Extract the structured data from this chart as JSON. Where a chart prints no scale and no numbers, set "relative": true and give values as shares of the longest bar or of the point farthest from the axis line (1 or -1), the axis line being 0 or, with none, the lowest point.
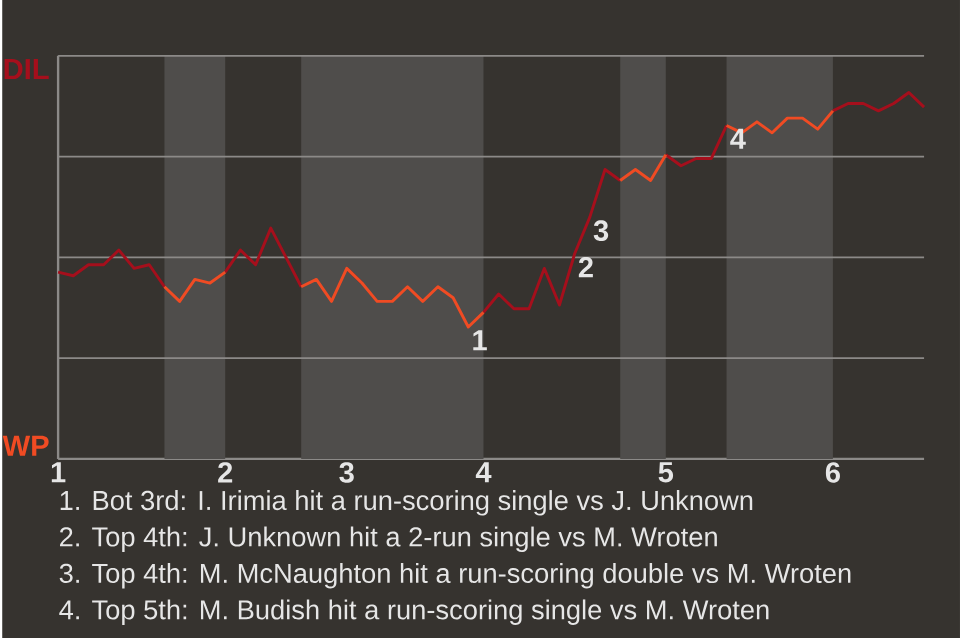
{
  "chart_data": {
    "type": "line",
    "relative": true,
    "grid": true,
    "legend": "left",
    "categories": [
      "1",
      null,
      null,
      null,
      null,
      null,
      null,
      null,
      null,
      null,
      null,
      "2",
      null,
      null,
      null,
      null,
      null,
      null,
      null,
      "3",
      null,
      null,
      null,
      null,
      null,
      null,
      null,
      null,
      "4",
      null,
      null,
      null,
      null,
      null,
      null,
      null,
      null,
      null,
      null,
      null,
      "5",
      null,
      null,
      null,
      null,
      null,
      null,
      null,
      null,
      null,
      null,
      "6",
      null,
      null,
      null,
      null,
      null,
      null
    ],
    "series": [
      {
        "name": "DIL",
        "color": "#a50f1c",
        "values": [
          0.51,
          0.5,
          0.53,
          0.53,
          0.57,
          0.52,
          0.53,
          0.47,
          null,
          null,
          null,
          0.51,
          0.57,
          0.53,
          0.63,
          0.55,
          0.47,
          null,
          null,
          0.52,
          0.48,
          null,
          null,
          null,
          null,
          null,
          null,
          null,
          0.4,
          0.45,
          0.41,
          0.41,
          0.52,
          0.42,
          0.56,
          0.66,
          0.79,
          0.76,
          null,
          null,
          0.83,
          0.8,
          0.82,
          0.82,
          0.91,
          null,
          null,
          null,
          null,
          null,
          null,
          0.95,
          0.97,
          0.97,
          0.95,
          0.97,
          1.0,
          0.96
        ]
      },
      {
        "name": "WP",
        "color": "#f04b23",
        "values": [
          null,
          null,
          null,
          null,
          null,
          null,
          null,
          0.47,
          0.43,
          0.49,
          0.48,
          0.51,
          null,
          null,
          null,
          null,
          0.47,
          0.49,
          0.43,
          0.52,
          0.48,
          0.43,
          0.43,
          0.47,
          0.43,
          0.47,
          0.44,
          0.36,
          0.4,
          null,
          null,
          null,
          null,
          null,
          null,
          null,
          null,
          0.76,
          0.79,
          0.76,
          0.83,
          null,
          null,
          null,
          0.91,
          0.89,
          0.92,
          0.89,
          0.93,
          0.93,
          0.9,
          0.95,
          null,
          null,
          null,
          null,
          null,
          null
        ]
      }
    ],
    "annotations": [
      {
        "text": "1",
        "y": 0.36
      },
      {
        "text": "2",
        "y": 0.56
      },
      {
        "text": "3",
        "y": 0.66
      },
      {
        "text": "4",
        "y": 0.91
      },
      "1. Bot 3rd: I. Irimia hit a run-scoring single vs J. Unknown",
      "2. Top 4th: J. Unknown hit a 2-run single vs M. Wroten",
      "3. Top 4th: M. McNaughton hit a run-scoring double vs M. Wroten",
      "4. Top 5th: M. Budish hit a run-scoring single vs M. Wroten"
    ]
  }
}
